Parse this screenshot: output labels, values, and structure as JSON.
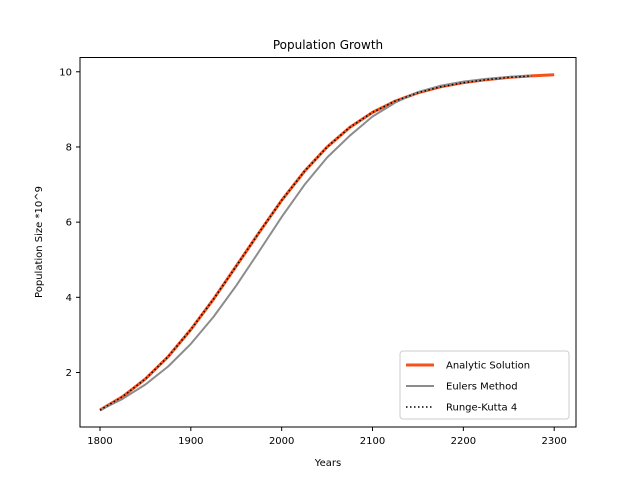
{
  "chart_data": {
    "type": "line",
    "title": "Population Growth",
    "xlabel": "Years",
    "ylabel": "Population Size *10^9",
    "xlim": [
      1778,
      2324
    ],
    "ylim": [
      0.55,
      10.38
    ],
    "xticks": [
      1800,
      1900,
      2000,
      2100,
      2200,
      2300
    ],
    "yticks": [
      2,
      4,
      6,
      8,
      10
    ],
    "legend_position": "lower-right",
    "grid": false,
    "series": [
      {
        "name": "Analytic Solution",
        "color": "#f4511e",
        "style": "solid-thick",
        "x": [
          1800,
          1825,
          1850,
          1875,
          1900,
          1925,
          1950,
          1975,
          2000,
          2025,
          2050,
          2075,
          2100,
          2125,
          2150,
          2175,
          2200,
          2225,
          2250,
          2275,
          2300
        ],
        "y": [
          1.0,
          1.36,
          1.83,
          2.42,
          3.14,
          3.95,
          4.83,
          5.72,
          6.58,
          7.35,
          8.0,
          8.52,
          8.92,
          9.22,
          9.44,
          9.6,
          9.71,
          9.79,
          9.85,
          9.89,
          9.92
        ]
      },
      {
        "name": "Eulers Method",
        "color": "#8c8c8c",
        "style": "solid",
        "x": [
          1800,
          1825,
          1850,
          1875,
          1900,
          1925,
          1950,
          1975,
          2000,
          2025,
          2050,
          2075,
          2100,
          2125,
          2150,
          2175,
          2200,
          2225,
          2250,
          2275
        ],
        "y": [
          1.0,
          1.3,
          1.68,
          2.16,
          2.76,
          3.48,
          4.31,
          5.22,
          6.14,
          6.99,
          7.72,
          8.3,
          8.81,
          9.18,
          9.46,
          9.63,
          9.74,
          9.81,
          9.86,
          9.9
        ]
      },
      {
        "name": "Runge-Kutta 4",
        "color": "#000000",
        "style": "dotted",
        "x": [
          1800,
          1825,
          1850,
          1875,
          1900,
          1925,
          1950,
          1975,
          2000,
          2025,
          2050,
          2075,
          2100,
          2125,
          2150,
          2175,
          2200,
          2225,
          2250,
          2275
        ],
        "y": [
          1.0,
          1.36,
          1.83,
          2.42,
          3.14,
          3.95,
          4.83,
          5.72,
          6.58,
          7.35,
          8.0,
          8.52,
          8.92,
          9.22,
          9.44,
          9.6,
          9.71,
          9.79,
          9.85,
          9.89
        ]
      }
    ]
  }
}
